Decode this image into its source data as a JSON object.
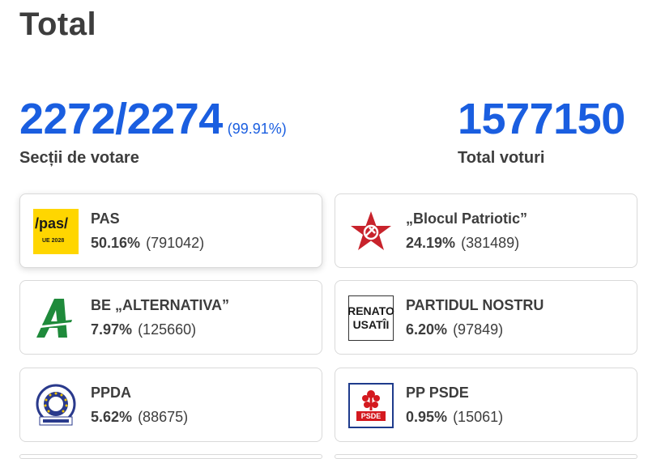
{
  "page": {
    "title": "Total"
  },
  "stations": {
    "counted": "2272/2274",
    "percent": "(99.91%)",
    "label": "Secții de votare"
  },
  "votes": {
    "total": "1577150",
    "label": "Total voturi"
  },
  "parties": [
    {
      "name": "PAS",
      "percent": "50.16%",
      "votes": "(791042)",
      "logo": "pas-logo",
      "logo_text": "/pas/",
      "logo_sub": "UE 2028"
    },
    {
      "name": "„Blocul Patriotic”",
      "percent": "24.19%",
      "votes": "(381489)",
      "logo": "red-star-logo"
    },
    {
      "name": "BE „ALTERNATIVA”",
      "percent": "7.97%",
      "votes": "(125660)",
      "logo": "green-a-logo"
    },
    {
      "name": "PARTIDUL NOSTRU",
      "percent": "6.20%",
      "votes": "(97849)",
      "logo": "renato-usatii-logo",
      "logo_line1": "RENATO",
      "logo_line2": "USATÎI"
    },
    {
      "name": "PPDA",
      "percent": "5.62%",
      "votes": "(88675)",
      "logo": "ppda-seal-logo"
    },
    {
      "name": "PP PSDE",
      "percent": "0.95%",
      "votes": "(15061)",
      "logo": "psde-logo",
      "logo_text": "PSDE"
    }
  ],
  "colors": {
    "accent": "#1a5ee0",
    "text": "#3d3d3d",
    "pas_yellow": "#ffd600",
    "star_red": "#c8232c",
    "alternativa_green": "#1f8a3b",
    "psde_red": "#d4191f",
    "ppda_blue": "#2a3a8c"
  }
}
